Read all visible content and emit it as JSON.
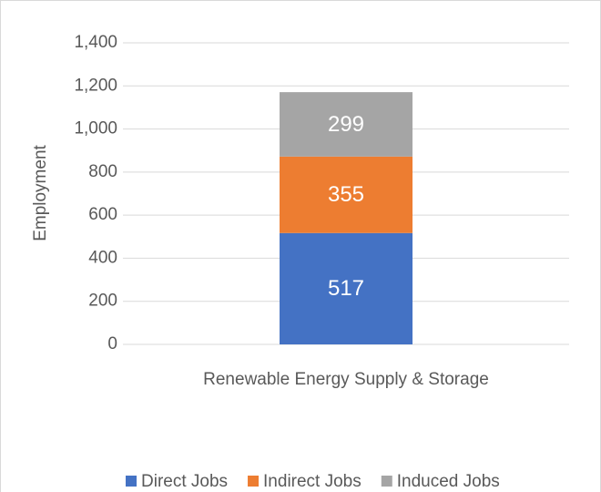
{
  "chart_data": {
    "type": "bar",
    "stacked": true,
    "categories": [
      "Renewable Energy Supply & Storage"
    ],
    "series": [
      {
        "name": "Direct Jobs",
        "color": "#4472c4",
        "values": [
          517
        ]
      },
      {
        "name": "Indirect Jobs",
        "color": "#ed7d31",
        "values": [
          355
        ]
      },
      {
        "name": "Induced Jobs",
        "color": "#a5a5a5",
        "values": [
          299
        ]
      }
    ],
    "y_label": "Employment",
    "ylim": [
      0,
      1400
    ],
    "yticks": [
      0,
      200,
      400,
      600,
      800,
      {
        "value": 1000,
        "label": "1,000"
      },
      {
        "value": 1200,
        "label": "1,200"
      },
      {
        "value": 1400,
        "label": "1,400"
      }
    ],
    "grid": true,
    "legend": "bottom",
    "data_labels": true
  }
}
